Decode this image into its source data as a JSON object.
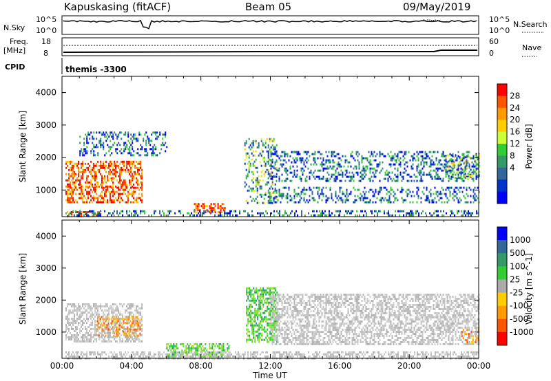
{
  "header": {
    "station": "Kapuskasing (fitACF)",
    "beam": "Beam 05",
    "date": "09/May/2019"
  },
  "status_panels": {
    "nsky_label": "N.Sky",
    "nsearch_label": "N.Search",
    "nsky_ticks": [
      "10^5",
      "10^0"
    ],
    "nsearch_ticks": [
      "10^5",
      "10^0"
    ],
    "freq_label_1": "Freq.",
    "freq_label_2": "[MHz]",
    "freq_ticks": [
      "18",
      "8"
    ],
    "nave_label": "Nave",
    "nave_ticks": [
      "60",
      "0"
    ],
    "cpid_label": "CPID",
    "cpid_value": "themis -3300"
  },
  "chart_data": [
    {
      "type": "heatmap",
      "parameter": "power",
      "xlabel": "",
      "ylabel": "Slant Range [km]",
      "xlim": [
        "00:00",
        "24:00"
      ],
      "ylim": [
        180,
        4500
      ],
      "y_ticks": [
        "4000",
        "3000",
        "2000",
        "1000"
      ],
      "colorbar": {
        "label": "Power [dB]",
        "ticks": [
          "28",
          "24",
          "20",
          "16",
          "12",
          "8",
          "4"
        ],
        "colors": [
          "#ff0000",
          "#ff5500",
          "#ff9900",
          "#ffcc00",
          "#ccff33",
          "#33cc33",
          "#339966",
          "#336699",
          "#0033cc",
          "#0000ff"
        ]
      },
      "echo_regions": [
        {
          "t_start": 0.2,
          "t_end": 4.6,
          "r_start": 1100,
          "r_end": 1900,
          "level": "high"
        },
        {
          "t_start": 0.2,
          "t_end": 4.6,
          "r_start": 600,
          "r_end": 1100,
          "level": "high"
        },
        {
          "t_start": 0.2,
          "t_end": 2.2,
          "r_start": 200,
          "r_end": 350,
          "level": "high"
        },
        {
          "t_start": 7.6,
          "t_end": 9.4,
          "r_start": 300,
          "r_end": 600,
          "level": "high"
        },
        {
          "t_start": 0.2,
          "t_end": 24.0,
          "r_start": 200,
          "r_end": 380,
          "level": "low"
        },
        {
          "t_start": 10.5,
          "t_end": 12.4,
          "r_start": 600,
          "r_end": 2600,
          "level": "mid"
        },
        {
          "t_start": 12.0,
          "t_end": 24.0,
          "r_start": 600,
          "r_end": 1100,
          "level": "low"
        },
        {
          "t_start": 12.0,
          "t_end": 24.0,
          "r_start": 1300,
          "r_end": 2200,
          "level": "low"
        },
        {
          "t_start": 22.0,
          "t_end": 24.0,
          "r_start": 1400,
          "r_end": 2100,
          "level": "mid"
        },
        {
          "t_start": 1.0,
          "t_end": 6.0,
          "r_start": 2100,
          "r_end": 2800,
          "level": "low"
        }
      ]
    },
    {
      "type": "heatmap",
      "parameter": "velocity",
      "xlabel": "Time UT",
      "ylabel": "Slant Range [km]",
      "xlim": [
        "00:00",
        "24:00"
      ],
      "ylim": [
        180,
        4500
      ],
      "x_ticks": [
        "00:00",
        "04:00",
        "08:00",
        "12:00",
        "16:00",
        "20:00",
        "00:00"
      ],
      "y_ticks": [
        "4000",
        "3000",
        "2000",
        "1000"
      ],
      "colorbar": {
        "label": "Velocity [m s^-1]",
        "ticks": [
          "1000",
          "500",
          "100",
          "25",
          "-25",
          "-100",
          "-500",
          "-1000"
        ],
        "colors": [
          "#0000ff",
          "#336699",
          "#339966",
          "#33cc33",
          "#aaaaaa",
          "#ffcc00",
          "#ff9900",
          "#ff5500",
          "#ff0000"
        ]
      },
      "echo_regions": [
        {
          "t_start": 0.2,
          "t_end": 4.6,
          "r_start": 700,
          "r_end": 1900,
          "level": "ground"
        },
        {
          "t_start": 2.0,
          "t_end": 4.6,
          "r_start": 900,
          "r_end": 1500,
          "level": "negative"
        },
        {
          "t_start": 6.0,
          "t_end": 9.6,
          "r_start": 250,
          "r_end": 650,
          "level": "positive"
        },
        {
          "t_start": 10.6,
          "t_end": 12.4,
          "r_start": 700,
          "r_end": 2400,
          "level": "positive"
        },
        {
          "t_start": 0.2,
          "t_end": 24.0,
          "r_start": 200,
          "r_end": 400,
          "level": "ground"
        },
        {
          "t_start": 12.0,
          "t_end": 24.0,
          "r_start": 600,
          "r_end": 2200,
          "level": "ground"
        },
        {
          "t_start": 23.0,
          "t_end": 24.0,
          "r_start": 700,
          "r_end": 1100,
          "level": "negative"
        }
      ]
    }
  ]
}
